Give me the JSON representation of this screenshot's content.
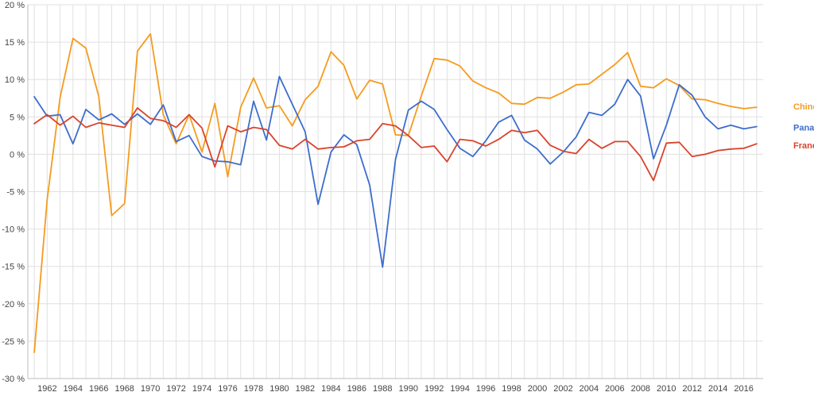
{
  "chart_data": {
    "type": "line",
    "title": "",
    "xlabel": "",
    "ylabel": "",
    "ylim": [
      -30,
      20
    ],
    "yticks": [
      -30,
      -25,
      -20,
      -15,
      -10,
      -5,
      0,
      5,
      10,
      15,
      20
    ],
    "ytick_labels": [
      "-30 %",
      "-25 %",
      "-20 %",
      "-15 %",
      "-10 %",
      "-5 %",
      "0 %",
      "5 %",
      "10 %",
      "15 %",
      "20 %"
    ],
    "xlim": [
      1961,
      2017
    ],
    "xticks": [
      1962,
      1964,
      1966,
      1968,
      1970,
      1972,
      1974,
      1976,
      1978,
      1980,
      1982,
      1984,
      1986,
      1988,
      1990,
      1992,
      1994,
      1996,
      1998,
      2000,
      2002,
      2004,
      2006,
      2008,
      2010,
      2012,
      2014,
      2016
    ],
    "grid": true,
    "legend": "right",
    "x": [
      1961,
      1962,
      1963,
      1964,
      1965,
      1966,
      1967,
      1968,
      1969,
      1970,
      1971,
      1972,
      1973,
      1974,
      1975,
      1976,
      1977,
      1978,
      1979,
      1980,
      1981,
      1982,
      1983,
      1984,
      1985,
      1986,
      1987,
      1988,
      1989,
      1990,
      1991,
      1992,
      1993,
      1994,
      1995,
      1996,
      1997,
      1998,
      1999,
      2000,
      2001,
      2002,
      2003,
      2004,
      2005,
      2006,
      2007,
      2008,
      2009,
      2010,
      2011,
      2012,
      2013,
      2014,
      2015,
      2016,
      2017
    ],
    "series": [
      {
        "name": "Chine",
        "color": "#f59b1f",
        "values": [
          -26.5,
          -6.1,
          7.6,
          15.5,
          14.2,
          7.7,
          -8.2,
          -6.6,
          13.8,
          16.1,
          5.3,
          1.4,
          5.3,
          0.3,
          6.8,
          -3.0,
          6.3,
          10.2,
          6.2,
          6.5,
          3.8,
          7.3,
          9.1,
          13.7,
          11.9,
          7.4,
          9.9,
          9.4,
          2.6,
          2.5,
          7.8,
          12.8,
          12.6,
          11.8,
          9.8,
          8.9,
          8.2,
          6.8,
          6.7,
          7.6,
          7.5,
          8.3,
          9.3,
          9.4,
          10.7,
          12.0,
          13.6,
          9.1,
          8.9,
          10.1,
          9.2,
          7.4,
          7.3,
          6.8,
          6.4,
          6.1,
          6.3
        ]
      },
      {
        "name": "Panama",
        "color": "#3d6dcc",
        "values": [
          7.7,
          5.1,
          5.3,
          1.4,
          6.0,
          4.6,
          5.4,
          4.0,
          5.4,
          4.0,
          6.6,
          1.7,
          2.5,
          -0.3,
          -0.9,
          -1.0,
          -1.4,
          7.1,
          1.9,
          10.4,
          6.7,
          3.0,
          -6.7,
          0.3,
          2.6,
          1.3,
          -4.1,
          -15.1,
          -0.7,
          5.9,
          7.1,
          6.0,
          3.3,
          0.8,
          -0.3,
          1.8,
          4.3,
          5.2,
          1.9,
          0.7,
          -1.3,
          0.3,
          2.3,
          5.6,
          5.2,
          6.7,
          10.0,
          7.8,
          -0.6,
          3.9,
          9.3,
          7.9,
          5.0,
          3.4,
          3.9,
          3.4,
          3.7
        ]
      },
      {
        "name": "France",
        "color": "#d9432c",
        "values": [
          4.1,
          5.3,
          3.9,
          5.1,
          3.6,
          4.2,
          3.9,
          3.6,
          6.2,
          4.8,
          4.5,
          3.6,
          5.3,
          3.5,
          -1.7,
          3.8,
          3.0,
          3.6,
          3.3,
          1.2,
          0.7,
          2.0,
          0.7,
          0.9,
          1.0,
          1.8,
          2.0,
          4.1,
          3.8,
          2.5,
          0.9,
          1.1,
          -1.0,
          2.0,
          1.8,
          1.1,
          2.0,
          3.2,
          2.9,
          3.2,
          1.2,
          0.4,
          0.1,
          2.0,
          0.8,
          1.7,
          1.7,
          -0.3,
          -3.5,
          1.5,
          1.6,
          -0.3,
          0.0,
          0.5,
          0.7,
          0.8,
          1.4
        ]
      }
    ]
  }
}
